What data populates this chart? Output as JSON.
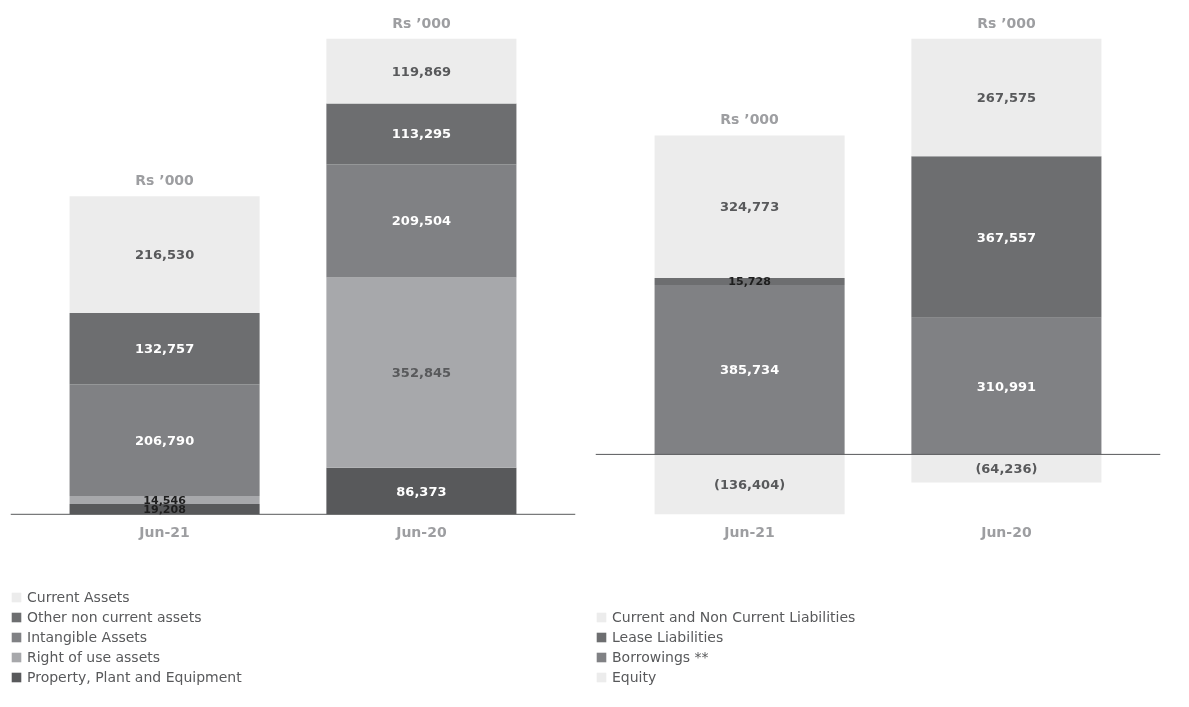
{
  "chart_data": [
    {
      "type": "bar",
      "stacked": true,
      "categories": [
        "Jun-21",
        "Jun-20"
      ],
      "tick_labels": "x",
      "legend": "bottom left",
      "annotations": [
        "Rs ’000",
        "Rs ’000"
      ],
      "series": [
        {
          "name": "Property, Plant and Equipment",
          "color": "#58595b",
          "values": [
            19208,
            86373
          ],
          "value_labels": [
            "19,208",
            "86,373"
          ]
        },
        {
          "name": "Right of use assets",
          "color": "#a7a8ab",
          "values": [
            14546,
            352845
          ],
          "value_labels": [
            "14,546",
            "352,845"
          ]
        },
        {
          "name": "Intangible Assets",
          "color": "#808184",
          "values": [
            206790,
            209504
          ],
          "value_labels": [
            "206,790",
            "209,504"
          ]
        },
        {
          "name": "Other non current assets",
          "color": "#6d6e70",
          "values": [
            132757,
            113295
          ],
          "value_labels": [
            "132,757",
            "113,295"
          ]
        },
        {
          "name": "Current Assets",
          "color": "#ececec",
          "values": [
            216530,
            119869
          ],
          "value_labels": [
            "216,530",
            "119,869"
          ]
        }
      ]
    },
    {
      "type": "bar",
      "stacked": true,
      "categories": [
        "Jun-21",
        "Jun-20"
      ],
      "tick_labels": "x",
      "legend": "bottom left",
      "annotations": [
        "Rs ’000",
        "Rs ’000"
      ],
      "series": [
        {
          "name": "Borrowings **",
          "color": "#808184",
          "values": [
            385734,
            310991
          ],
          "value_labels": [
            "385,734",
            "310,991"
          ]
        },
        {
          "name": "Lease Liabilities",
          "color": "#6d6e70",
          "values": [
            15728,
            367557
          ],
          "value_labels": [
            "15,728",
            "367,557"
          ]
        },
        {
          "name": "Current and Non Current Liabilities",
          "color": "#ececec",
          "values": [
            324773,
            267575
          ],
          "value_labels": [
            "324,773",
            "267,575"
          ]
        },
        {
          "name": "Equity",
          "color": "#ececec",
          "values": [
            -136404,
            -64236
          ],
          "value_labels": [
            "(136,404)",
            "(64,236)"
          ]
        }
      ]
    }
  ]
}
